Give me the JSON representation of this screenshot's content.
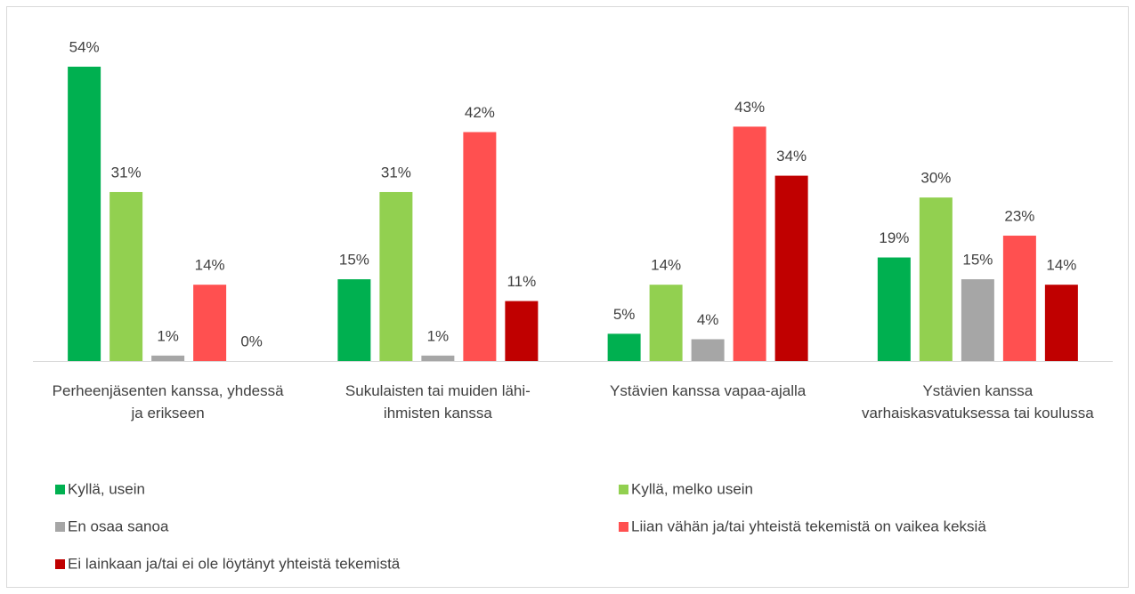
{
  "chart_data": {
    "type": "bar",
    "categories": [
      "Perheenjäsenten kanssa, yhdessä ja erikseen",
      "Sukulaisten tai muiden lähi-ihmisten kanssa",
      "Ystävien kanssa vapaa-ajalla",
      "Ystävien kanssa varhaiskasvatuksessa tai koulussa"
    ],
    "series": [
      {
        "name": "Kyllä, usein",
        "color": "#00b050",
        "values": [
          54,
          15,
          5,
          19
        ],
        "value_labels": [
          "54%",
          "15%",
          "5%",
          "19%"
        ]
      },
      {
        "name": "Kyllä, melko usein",
        "color": "#92d050",
        "values": [
          31,
          31,
          14,
          30
        ],
        "value_labels": [
          "31%",
          "31%",
          "14%",
          "30%"
        ]
      },
      {
        "name": "En osaa sanoa",
        "color": "#a6a6a6",
        "values": [
          1,
          1,
          4,
          15
        ],
        "value_labels": [
          "1%",
          "1%",
          "4%",
          "15%"
        ]
      },
      {
        "name": "Liian vähän ja/tai yhteistä tekemistä on vaikea keksiä",
        "color": "#ff5050",
        "values": [
          14,
          42,
          43,
          23
        ],
        "value_labels": [
          "14%",
          "42%",
          "43%",
          "23%"
        ]
      },
      {
        "name": "Ei lainkaan ja/tai ei ole löytänyt yhteistä tekemistä",
        "color": "#c00000",
        "values": [
          0,
          11,
          34,
          14
        ],
        "value_labels": [
          "0%",
          "11%",
          "34%",
          "14%"
        ]
      }
    ],
    "legend": "bottom"
  }
}
